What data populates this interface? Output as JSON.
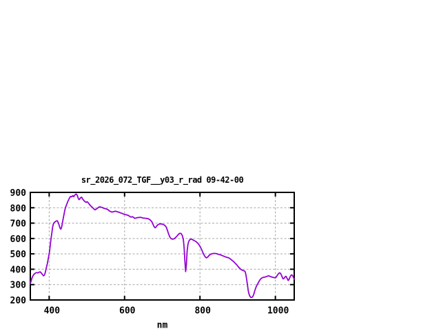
{
  "chart": {
    "title": "sr_2026_072_TGF__y03_r_rad 09-42-00",
    "xlabel": "nm",
    "colors": {
      "line": "#9400d3",
      "grid": "#a6a6a6",
      "border": "#000000",
      "background": "#ffffff",
      "text": "#000000"
    }
  },
  "chart_data": {
    "type": "line",
    "title": "sr_2026_072_TGF__y03_r_rad 09-42-00",
    "xlabel": "nm",
    "ylabel": "",
    "xlim": [
      350,
      1050
    ],
    "ylim": [
      200,
      900
    ],
    "xticks": [
      400,
      600,
      800,
      1000
    ],
    "yticks": [
      200,
      300,
      400,
      500,
      600,
      700,
      800,
      900
    ],
    "grid": true,
    "legend_position": "none",
    "series": [
      {
        "name": "sr_2026_072_TGF__y03_r_rad",
        "color": "#9400d3",
        "points": [
          [
            350,
            308
          ],
          [
            352,
            322
          ],
          [
            354,
            340
          ],
          [
            356,
            352
          ],
          [
            358,
            362
          ],
          [
            361,
            370
          ],
          [
            364,
            376
          ],
          [
            367,
            378
          ],
          [
            370,
            376
          ],
          [
            373,
            381
          ],
          [
            376,
            383
          ],
          [
            379,
            376
          ],
          [
            382,
            366
          ],
          [
            385,
            357
          ],
          [
            387,
            360
          ],
          [
            389,
            372
          ],
          [
            391,
            392
          ],
          [
            393,
            414
          ],
          [
            395,
            434
          ],
          [
            397,
            460
          ],
          [
            399,
            488
          ],
          [
            401,
            515
          ],
          [
            403,
            560
          ],
          [
            405,
            600
          ],
          [
            407,
            634
          ],
          [
            409,
            672
          ],
          [
            411,
            694
          ],
          [
            413,
            703
          ],
          [
            415,
            707
          ],
          [
            417,
            711
          ],
          [
            419,
            714
          ],
          [
            421,
            716
          ],
          [
            423,
            710
          ],
          [
            425,
            698
          ],
          [
            427,
            682
          ],
          [
            429,
            667
          ],
          [
            431,
            661
          ],
          [
            433,
            673
          ],
          [
            435,
            700
          ],
          [
            437,
            727
          ],
          [
            439,
            753
          ],
          [
            441,
            778
          ],
          [
            443,
            800
          ],
          [
            445,
            813
          ],
          [
            447,
            825
          ],
          [
            449,
            839
          ],
          [
            451,
            849
          ],
          [
            453,
            859
          ],
          [
            455,
            868
          ],
          [
            457,
            874
          ],
          [
            459,
            871
          ],
          [
            461,
            875
          ],
          [
            463,
            879
          ],
          [
            465,
            872
          ],
          [
            467,
            878
          ],
          [
            469,
            885
          ],
          [
            471,
            889
          ],
          [
            473,
            887
          ],
          [
            475,
            877
          ],
          [
            477,
            862
          ],
          [
            479,
            853
          ],
          [
            481,
            857
          ],
          [
            483,
            865
          ],
          [
            486,
            869
          ],
          [
            489,
            856
          ],
          [
            492,
            847
          ],
          [
            495,
            840
          ],
          [
            498,
            836
          ],
          [
            501,
            839
          ],
          [
            504,
            831
          ],
          [
            507,
            821
          ],
          [
            510,
            813
          ],
          [
            513,
            806
          ],
          [
            516,
            799
          ],
          [
            519,
            791
          ],
          [
            522,
            787
          ],
          [
            525,
            792
          ],
          [
            528,
            797
          ],
          [
            531,
            803
          ],
          [
            534,
            806
          ],
          [
            537,
            804
          ],
          [
            540,
            802
          ],
          [
            543,
            799
          ],
          [
            546,
            796
          ],
          [
            549,
            794
          ],
          [
            552,
            792
          ],
          [
            555,
            789
          ],
          [
            558,
            783
          ],
          [
            561,
            778
          ],
          [
            564,
            774
          ],
          [
            567,
            772
          ],
          [
            570,
            774
          ],
          [
            573,
            776
          ],
          [
            576,
            778
          ],
          [
            579,
            775
          ],
          [
            582,
            773
          ],
          [
            585,
            771
          ],
          [
            588,
            768
          ],
          [
            591,
            765
          ],
          [
            594,
            763
          ],
          [
            597,
            759
          ],
          [
            600,
            757
          ],
          [
            603,
            755
          ],
          [
            606,
            753
          ],
          [
            609,
            751
          ],
          [
            612,
            747
          ],
          [
            615,
            741
          ],
          [
            618,
            740
          ],
          [
            621,
            742
          ],
          [
            624,
            737
          ],
          [
            627,
            731
          ],
          [
            630,
            733
          ],
          [
            633,
            735
          ],
          [
            636,
            736
          ],
          [
            639,
            737
          ],
          [
            642,
            738
          ],
          [
            645,
            736
          ],
          [
            648,
            734
          ],
          [
            651,
            732
          ],
          [
            654,
            732
          ],
          [
            657,
            731
          ],
          [
            660,
            730
          ],
          [
            663,
            728
          ],
          [
            666,
            724
          ],
          [
            669,
            718
          ],
          [
            672,
            710
          ],
          [
            675,
            695
          ],
          [
            678,
            678
          ],
          [
            681,
            670
          ],
          [
            684,
            676
          ],
          [
            687,
            687
          ],
          [
            690,
            692
          ],
          [
            693,
            695
          ],
          [
            696,
            695
          ],
          [
            699,
            694
          ],
          [
            702,
            692
          ],
          [
            705,
            688
          ],
          [
            708,
            682
          ],
          [
            711,
            672
          ],
          [
            714,
            650
          ],
          [
            717,
            628
          ],
          [
            720,
            610
          ],
          [
            723,
            600
          ],
          [
            726,
            596
          ],
          [
            729,
            596
          ],
          [
            732,
            599
          ],
          [
            735,
            606
          ],
          [
            738,
            613
          ],
          [
            741,
            622
          ],
          [
            744,
            630
          ],
          [
            747,
            634
          ],
          [
            750,
            632
          ],
          [
            753,
            620
          ],
          [
            756,
            594
          ],
          [
            758,
            540
          ],
          [
            760,
            455
          ],
          [
            762,
            385
          ],
          [
            764,
            430
          ],
          [
            766,
            520
          ],
          [
            768,
            560
          ],
          [
            770,
            580
          ],
          [
            773,
            592
          ],
          [
            776,
            597
          ],
          [
            779,
            594
          ],
          [
            782,
            590
          ],
          [
            785,
            586
          ],
          [
            788,
            582
          ],
          [
            791,
            577
          ],
          [
            795,
            567
          ],
          [
            799,
            553
          ],
          [
            803,
            535
          ],
          [
            807,
            513
          ],
          [
            811,
            492
          ],
          [
            814,
            480
          ],
          [
            817,
            474
          ],
          [
            820,
            478
          ],
          [
            824,
            489
          ],
          [
            828,
            497
          ],
          [
            832,
            501
          ],
          [
            836,
            503
          ],
          [
            840,
            503
          ],
          [
            844,
            501
          ],
          [
            848,
            498
          ],
          [
            852,
            495
          ],
          [
            856,
            492
          ],
          [
            860,
            488
          ],
          [
            864,
            484
          ],
          [
            868,
            480
          ],
          [
            872,
            477
          ],
          [
            876,
            474
          ],
          [
            879,
            470
          ],
          [
            882,
            464
          ],
          [
            885,
            458
          ],
          [
            888,
            452
          ],
          [
            891,
            445
          ],
          [
            894,
            438
          ],
          [
            897,
            430
          ],
          [
            900,
            421
          ],
          [
            903,
            412
          ],
          [
            906,
            405
          ],
          [
            909,
            398
          ],
          [
            912,
            394
          ],
          [
            915,
            391
          ],
          [
            918,
            389
          ],
          [
            920,
            383
          ],
          [
            922,
            362
          ],
          [
            924,
            330
          ],
          [
            926,
            296
          ],
          [
            928,
            262
          ],
          [
            930,
            240
          ],
          [
            932,
            227
          ],
          [
            934,
            219
          ],
          [
            936,
            216
          ],
          [
            938,
            217
          ],
          [
            940,
            222
          ],
          [
            942,
            232
          ],
          [
            944,
            248
          ],
          [
            946,
            265
          ],
          [
            948,
            279
          ],
          [
            950,
            291
          ],
          [
            952,
            301
          ],
          [
            954,
            309
          ],
          [
            956,
            318
          ],
          [
            958,
            327
          ],
          [
            960,
            334
          ],
          [
            962,
            339
          ],
          [
            964,
            343
          ],
          [
            966,
            345
          ],
          [
            968,
            347
          ],
          [
            970,
            348
          ],
          [
            972,
            349
          ],
          [
            974,
            350
          ],
          [
            976,
            352
          ],
          [
            978,
            354
          ],
          [
            980,
            356
          ],
          [
            982,
            357
          ],
          [
            984,
            356
          ],
          [
            986,
            353
          ],
          [
            988,
            351
          ],
          [
            990,
            350
          ],
          [
            992,
            348
          ],
          [
            994,
            347
          ],
          [
            996,
            346
          ],
          [
            998,
            345
          ],
          [
            1000,
            344
          ],
          [
            1002,
            348
          ],
          [
            1004,
            356
          ],
          [
            1006,
            364
          ],
          [
            1008,
            370
          ],
          [
            1010,
            375
          ],
          [
            1012,
            377
          ],
          [
            1014,
            372
          ],
          [
            1016,
            362
          ],
          [
            1018,
            350
          ],
          [
            1020,
            338
          ],
          [
            1022,
            338
          ],
          [
            1024,
            345
          ],
          [
            1026,
            351
          ],
          [
            1028,
            354
          ],
          [
            1030,
            345
          ],
          [
            1032,
            336
          ],
          [
            1034,
            327
          ],
          [
            1036,
            332
          ],
          [
            1038,
            344
          ],
          [
            1040,
            355
          ],
          [
            1042,
            362
          ],
          [
            1044,
            363
          ],
          [
            1046,
            357
          ],
          [
            1048,
            346
          ],
          [
            1050,
            335
          ]
        ]
      }
    ]
  }
}
